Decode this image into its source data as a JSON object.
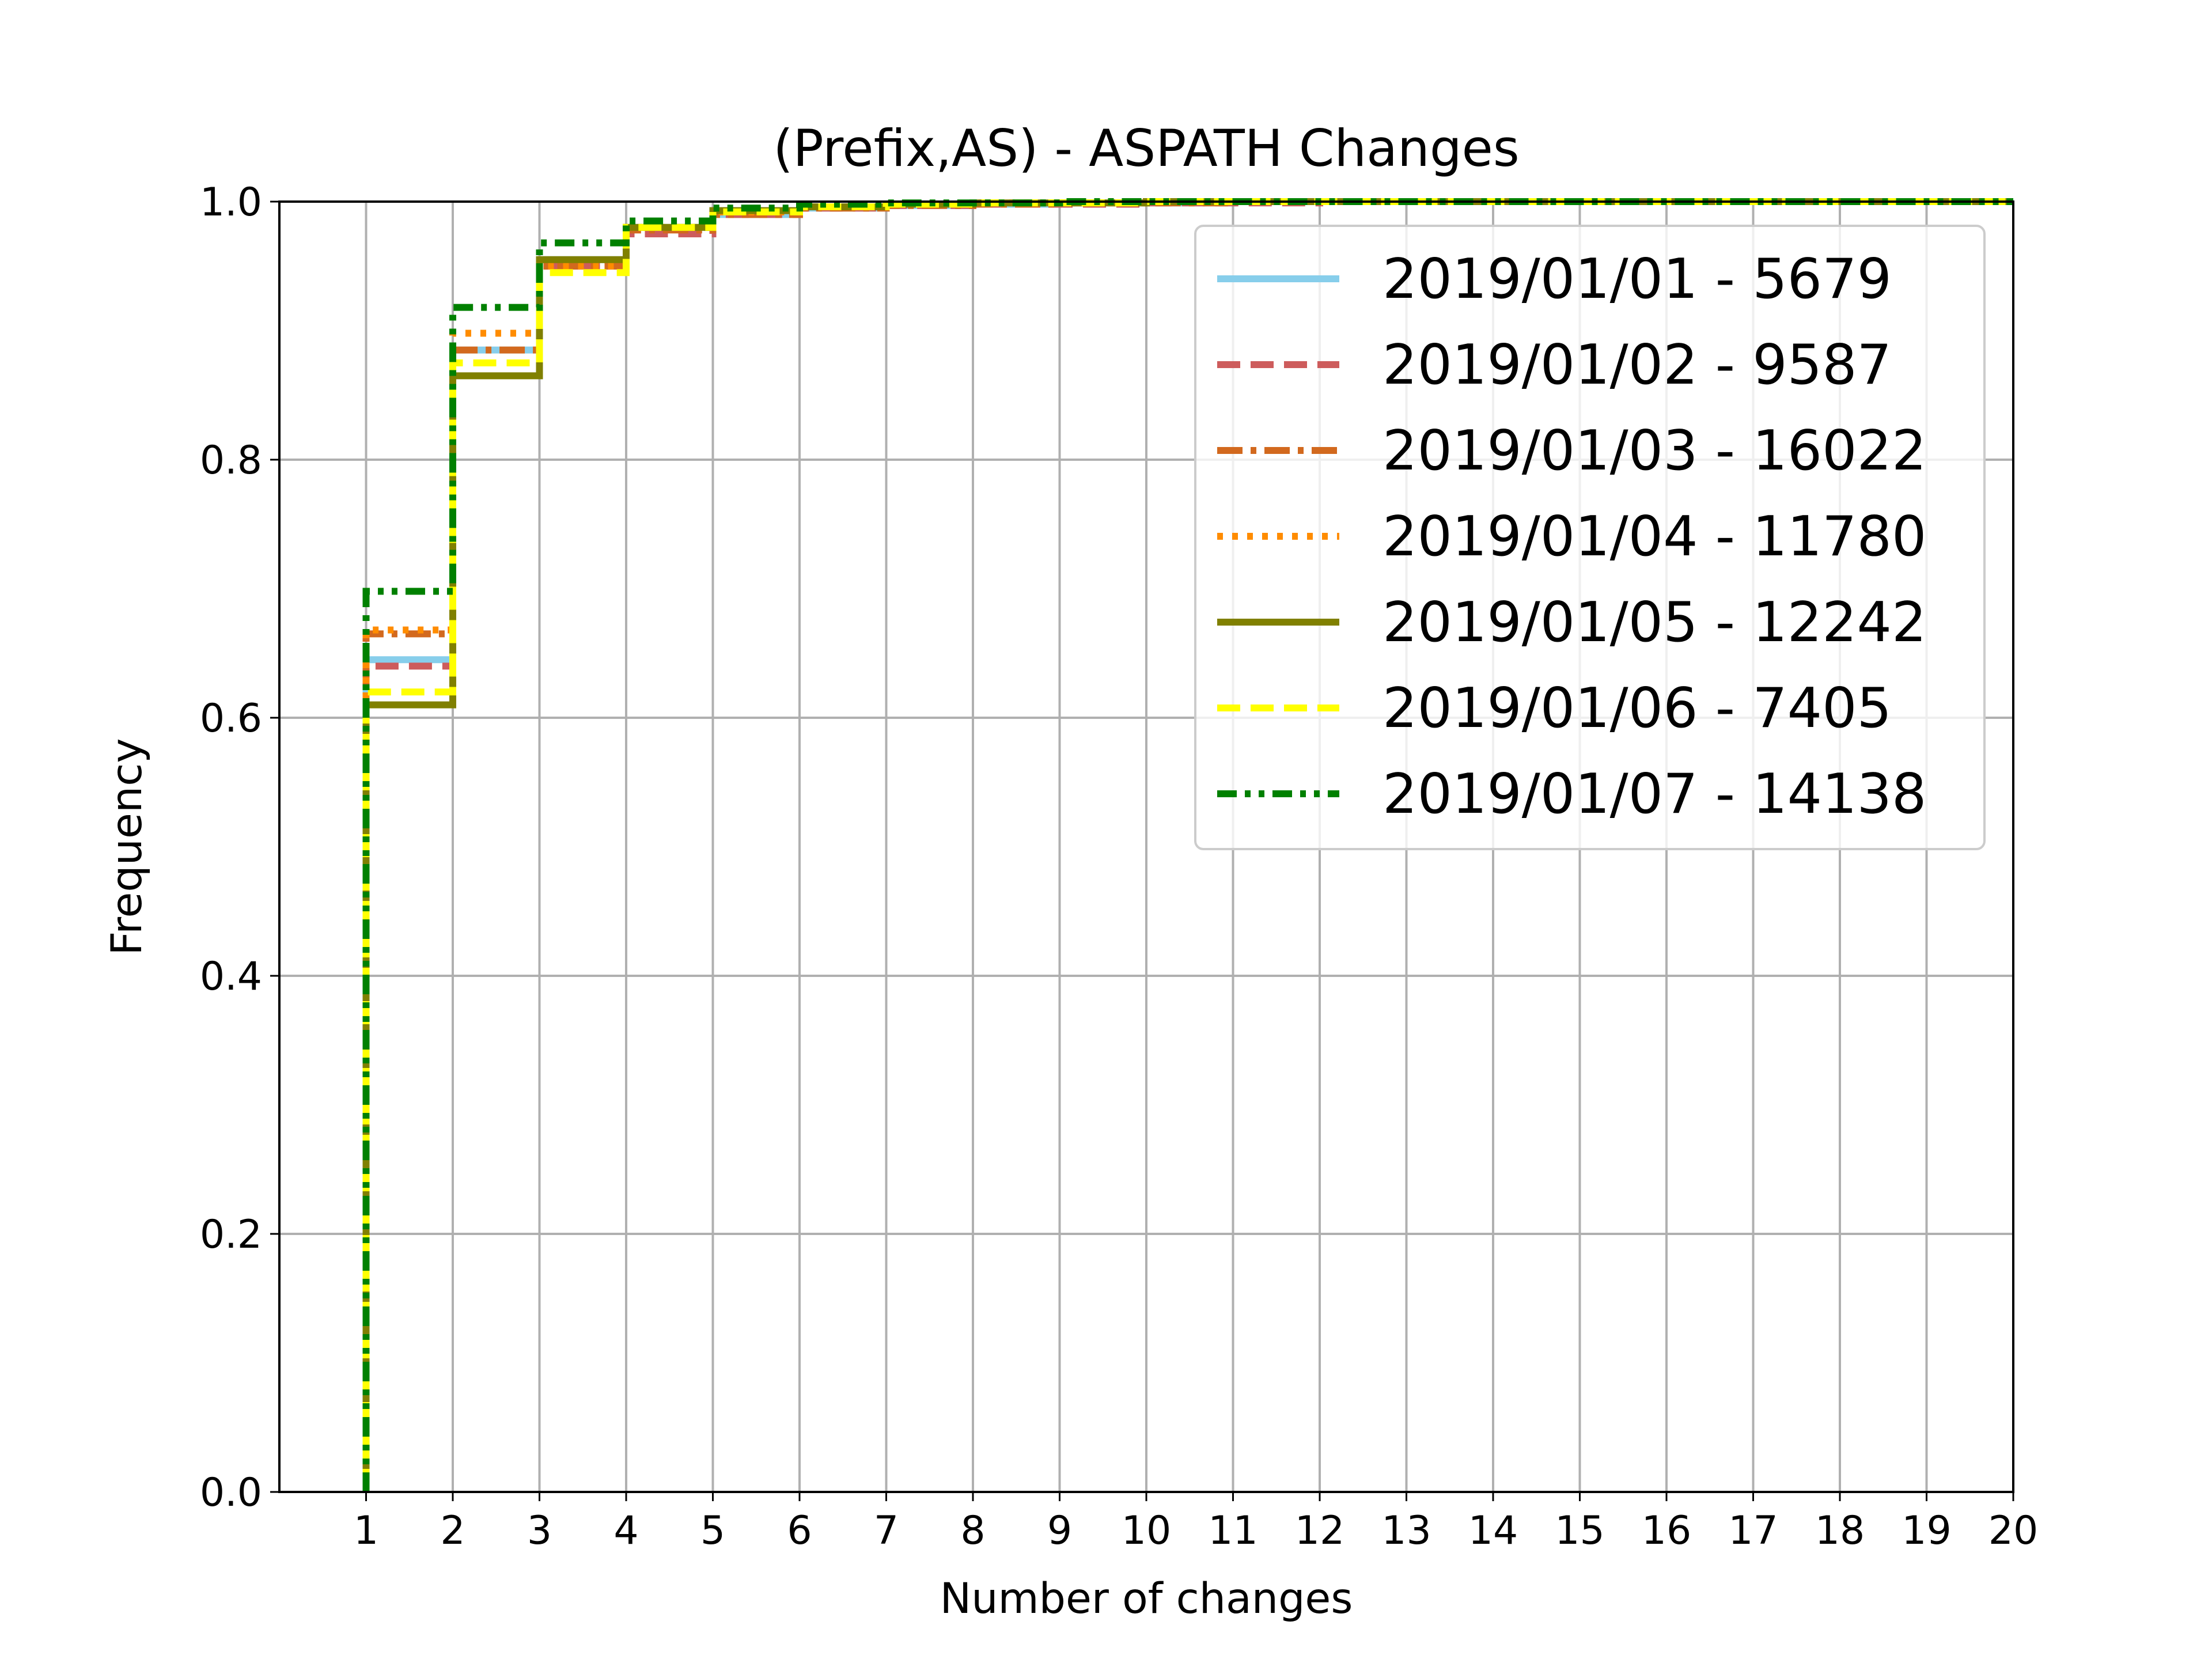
{
  "chart_data": {
    "type": "line",
    "step": "post",
    "title": "(Prefix,AS) - ASPATH Changes",
    "xlabel": "Number of changes",
    "ylabel": "Frequency",
    "xlim": [
      0,
      20
    ],
    "ylim": [
      0.0,
      1.0
    ],
    "xticks": [
      1,
      2,
      3,
      4,
      5,
      6,
      7,
      8,
      9,
      10,
      11,
      12,
      13,
      14,
      15,
      16,
      17,
      18,
      19,
      20
    ],
    "yticks": [
      0.0,
      0.2,
      0.4,
      0.6,
      0.8,
      1.0
    ],
    "ytick_labels": [
      "0.0",
      "0.2",
      "0.4",
      "0.6",
      "0.8",
      "1.0"
    ],
    "grid": true,
    "legend_position": "top-right",
    "x": [
      1,
      2,
      3,
      4,
      5,
      6,
      7,
      8,
      9,
      10,
      11,
      12,
      13,
      14,
      15,
      16,
      17,
      18,
      19,
      20
    ],
    "series": [
      {
        "name": "2019/01/01 - 5679",
        "color": "#87ceeb",
        "dash": "solid",
        "values": [
          0.645,
          0.885,
          0.955,
          0.98,
          0.99,
          0.995,
          0.997,
          0.998,
          0.999,
          0.999,
          1.0,
          1.0,
          1.0,
          1.0,
          1.0,
          1.0,
          1.0,
          1.0,
          1.0,
          1.0
        ]
      },
      {
        "name": "2019/01/02 - 9587",
        "color": "#cd5c5c",
        "dash": "dashed",
        "values": [
          0.64,
          0.875,
          0.95,
          0.975,
          0.99,
          0.995,
          0.997,
          0.998,
          0.998,
          0.999,
          0.999,
          1.0,
          1.0,
          1.0,
          1.0,
          1.0,
          1.0,
          1.0,
          1.0,
          1.0
        ]
      },
      {
        "name": "2019/01/03 - 16022",
        "color": "#d2691e",
        "dash": "dashdot",
        "values": [
          0.665,
          0.885,
          0.95,
          0.978,
          0.99,
          0.995,
          0.997,
          0.998,
          0.999,
          0.999,
          1.0,
          1.0,
          1.0,
          1.0,
          1.0,
          1.0,
          1.0,
          1.0,
          1.0,
          1.0
        ]
      },
      {
        "name": "2019/01/04 - 11780",
        "color": "#ff8c00",
        "dash": "dotted",
        "values": [
          0.668,
          0.898,
          0.95,
          0.98,
          0.992,
          0.996,
          0.998,
          0.999,
          0.999,
          1.0,
          1.0,
          1.0,
          1.0,
          1.0,
          1.0,
          1.0,
          1.0,
          1.0,
          1.0,
          1.0
        ]
      },
      {
        "name": "2019/01/05 - 12242",
        "color": "#808000",
        "dash": "solid",
        "values": [
          0.61,
          0.865,
          0.955,
          0.98,
          0.993,
          0.996,
          0.998,
          0.999,
          0.999,
          1.0,
          1.0,
          1.0,
          1.0,
          1.0,
          1.0,
          1.0,
          1.0,
          1.0,
          1.0,
          1.0
        ]
      },
      {
        "name": "2019/01/06 - 7405",
        "color": "#ffff00",
        "dash": "dashed",
        "values": [
          0.62,
          0.875,
          0.945,
          0.98,
          0.992,
          0.996,
          0.998,
          0.999,
          0.999,
          1.0,
          1.0,
          1.0,
          1.0,
          1.0,
          1.0,
          1.0,
          1.0,
          1.0,
          1.0,
          1.0
        ]
      },
      {
        "name": "2019/01/07 - 14138",
        "color": "#008000",
        "dash": "dashdotdot",
        "values": [
          0.698,
          0.918,
          0.968,
          0.985,
          0.995,
          0.998,
          0.999,
          0.999,
          1.0,
          1.0,
          1.0,
          1.0,
          1.0,
          1.0,
          1.0,
          1.0,
          1.0,
          1.0,
          1.0,
          1.0
        ]
      }
    ]
  }
}
